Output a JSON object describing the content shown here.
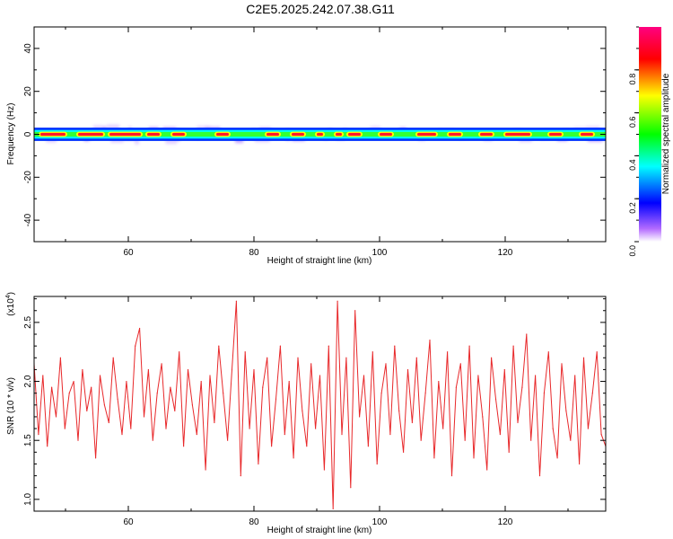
{
  "title": "C2E5.2025.242.07.38.G11",
  "chart_data": [
    {
      "type": "heatmap",
      "name": "spectrogram",
      "xlabel": "Height of straight line (km)",
      "ylabel": "Frequency (Hz)",
      "xlim": [
        45,
        136
      ],
      "ylim": [
        -50,
        50
      ],
      "xticks": [
        60,
        80,
        100,
        120
      ],
      "yticks": [
        -40,
        -20,
        0,
        20,
        40
      ],
      "band_center_hz": 0,
      "band_halfwidth_hz": 2,
      "colorbar": {
        "label": "Normalized spectral amplitude",
        "range": [
          0,
          1
        ],
        "ticks": [
          "0.0",
          "0.2",
          "0.4",
          "0.6",
          "0.8"
        ],
        "tick_values": [
          0.0,
          0.2,
          0.4,
          0.6,
          0.8
        ],
        "colors": [
          "#ffffff",
          "#a020f0",
          "#0000ff",
          "#00ffff",
          "#00ff00",
          "#ffff00",
          "#ff0000",
          "#ff0080"
        ]
      },
      "hot_segments": [
        [
          46,
          50
        ],
        [
          52,
          56
        ],
        [
          57,
          62
        ],
        [
          63,
          65
        ],
        [
          67,
          69
        ],
        [
          74,
          76
        ],
        [
          82,
          84
        ],
        [
          86,
          88
        ],
        [
          90,
          91
        ],
        [
          93,
          94
        ],
        [
          95,
          97
        ],
        [
          100,
          102
        ],
        [
          106,
          109
        ],
        [
          111,
          113
        ],
        [
          116,
          118
        ],
        [
          120,
          124
        ],
        [
          127,
          129
        ],
        [
          132,
          134
        ]
      ]
    },
    {
      "type": "line",
      "name": "snr",
      "xlabel": "Height of straight line (km)",
      "ylabel": "SNR (10 * v/v)",
      "scale_label": "(x10",
      "scale_exp": "4",
      "xlim": [
        45,
        136
      ],
      "ylim": [
        0.9,
        2.72
      ],
      "xticks": [
        60,
        80,
        100,
        120
      ],
      "yticks": [
        1.0,
        1.5,
        2.0,
        2.5
      ],
      "ytick_labels": [
        "1.0",
        "1.5",
        "2.0",
        "2.5"
      ],
      "color": "#e8282a",
      "x": [
        45.0,
        45.7,
        46.4,
        47.1,
        47.8,
        48.5,
        49.2,
        49.9,
        50.6,
        51.3,
        52.0,
        52.7,
        53.4,
        54.1,
        54.8,
        55.5,
        56.2,
        56.9,
        57.6,
        58.3,
        59.0,
        59.7,
        60.4,
        61.1,
        61.8,
        62.5,
        63.2,
        63.9,
        64.6,
        65.3,
        66.0,
        66.7,
        67.4,
        68.1,
        68.8,
        69.5,
        70.2,
        70.9,
        71.6,
        72.3,
        73.0,
        73.7,
        74.4,
        75.1,
        75.8,
        76.5,
        77.2,
        77.9,
        78.6,
        79.3,
        80.0,
        80.7,
        81.4,
        82.1,
        82.8,
        83.5,
        84.2,
        84.9,
        85.6,
        86.3,
        87.0,
        87.7,
        88.4,
        89.1,
        89.8,
        90.5,
        91.2,
        91.9,
        92.6,
        93.3,
        94.0,
        94.7,
        95.4,
        96.1,
        96.8,
        97.5,
        98.2,
        98.9,
        99.6,
        100.3,
        101.0,
        101.7,
        102.4,
        103.1,
        103.8,
        104.5,
        105.2,
        105.9,
        106.6,
        107.3,
        108.0,
        108.7,
        109.4,
        110.1,
        110.8,
        111.5,
        112.2,
        112.9,
        113.6,
        114.3,
        115.0,
        115.7,
        116.4,
        117.1,
        117.8,
        118.5,
        119.2,
        119.9,
        120.6,
        121.3,
        122.0,
        122.7,
        123.4,
        124.1,
        124.8,
        125.5,
        126.2,
        126.9,
        127.6,
        128.3,
        129.0,
        129.7,
        130.4,
        131.1,
        131.8,
        132.5,
        133.2,
        133.9,
        134.6,
        135.3,
        136.0
      ],
      "y": [
        2.15,
        1.55,
        2.05,
        1.45,
        1.95,
        1.7,
        2.2,
        1.6,
        1.9,
        2.0,
        1.5,
        2.1,
        1.75,
        1.95,
        1.35,
        2.05,
        1.8,
        1.65,
        2.2,
        1.85,
        1.55,
        2.0,
        1.6,
        2.3,
        2.45,
        1.7,
        2.1,
        1.5,
        1.9,
        2.15,
        1.6,
        1.95,
        1.75,
        2.25,
        1.45,
        2.1,
        1.8,
        1.55,
        2.0,
        1.25,
        2.05,
        1.65,
        2.3,
        1.9,
        1.5,
        2.1,
        2.68,
        1.2,
        2.25,
        1.6,
        2.1,
        1.3,
        1.95,
        2.2,
        1.45,
        1.85,
        2.3,
        1.55,
        2.0,
        1.35,
        2.2,
        1.75,
        1.45,
        2.15,
        1.6,
        2.05,
        1.25,
        2.3,
        0.92,
        2.68,
        1.55,
        2.2,
        1.1,
        2.6,
        1.7,
        2.05,
        1.45,
        2.25,
        1.3,
        1.9,
        2.15,
        1.55,
        2.3,
        1.75,
        1.4,
        2.1,
        1.65,
        2.2,
        1.5,
        1.9,
        2.35,
        1.35,
        2.0,
        1.6,
        2.25,
        1.2,
        1.95,
        2.15,
        1.5,
        2.3,
        1.35,
        2.05,
        1.7,
        1.25,
        2.2,
        1.85,
        1.55,
        2.1,
        1.4,
        2.3,
        1.65,
        1.95,
        2.4,
        1.5,
        2.05,
        1.2,
        1.9,
        2.25,
        1.6,
        1.35,
        2.15,
        1.75,
        1.5,
        2.05,
        1.3,
        2.2,
        1.6,
        1.9,
        2.25,
        1.55,
        1.45
      ]
    }
  ]
}
